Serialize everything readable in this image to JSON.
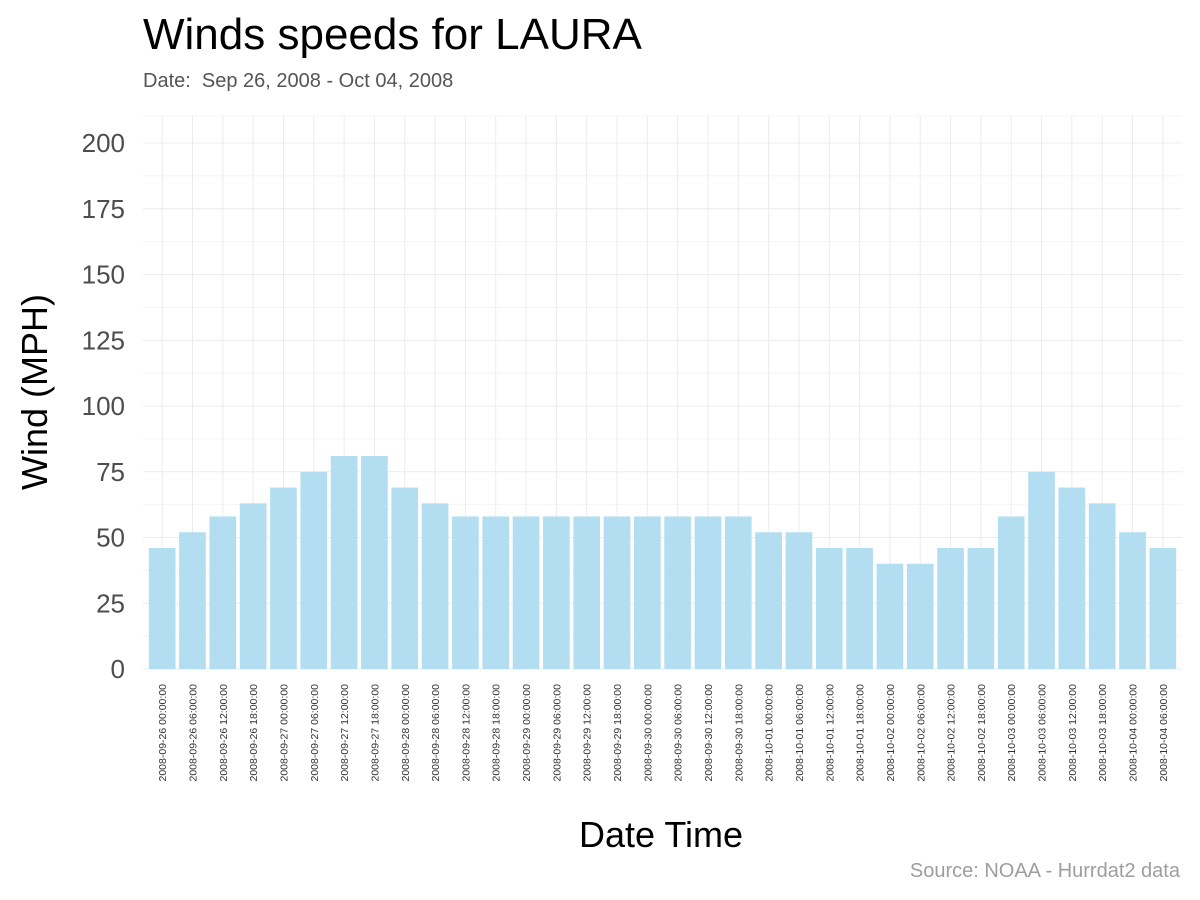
{
  "title": "Winds speeds for LAURA",
  "subtitle": "Date:  Sep 26, 2008 - Oct 04, 2008",
  "caption": "Source: NOAA - Hurrdat2 data",
  "colors": {
    "bar": "#b3def2",
    "grid": "#ececec",
    "background": "#ffffff"
  },
  "chart_data": {
    "type": "bar",
    "title": "Winds speeds for LAURA",
    "subtitle": "Date:  Sep 26, 2008 - Oct 04, 2008",
    "xlabel": "Date Time",
    "ylabel": "Wind (MPH)",
    "ylim": [
      0,
      200
    ],
    "yticks": [
      0,
      25,
      50,
      75,
      100,
      125,
      150,
      175,
      200
    ],
    "grid": true,
    "legend": "none",
    "categories": [
      "2008-09-26 00:00:00",
      "2008-09-26 06:00:00",
      "2008-09-26 12:00:00",
      "2008-09-26 18:00:00",
      "2008-09-27 00:00:00",
      "2008-09-27 06:00:00",
      "2008-09-27 12:00:00",
      "2008-09-27 18:00:00",
      "2008-09-28 00:00:00",
      "2008-09-28 06:00:00",
      "2008-09-28 12:00:00",
      "2008-09-28 18:00:00",
      "2008-09-29 00:00:00",
      "2008-09-29 06:00:00",
      "2008-09-29 12:00:00",
      "2008-09-29 18:00:00",
      "2008-09-30 00:00:00",
      "2008-09-30 06:00:00",
      "2008-09-30 12:00:00",
      "2008-09-30 18:00:00",
      "2008-10-01 00:00:00",
      "2008-10-01 06:00:00",
      "2008-10-01 12:00:00",
      "2008-10-01 18:00:00",
      "2008-10-02 00:00:00",
      "2008-10-02 06:00:00",
      "2008-10-02 12:00:00",
      "2008-10-02 18:00:00",
      "2008-10-03 00:00:00",
      "2008-10-03 06:00:00",
      "2008-10-03 12:00:00",
      "2008-10-03 18:00:00",
      "2008-10-04 00:00:00",
      "2008-10-04 06:00:00"
    ],
    "values": [
      46,
      52,
      58,
      63,
      69,
      75,
      81,
      81,
      69,
      63,
      58,
      58,
      58,
      58,
      58,
      58,
      58,
      58,
      58,
      58,
      52,
      52,
      46,
      46,
      40,
      40,
      46,
      46,
      58,
      75,
      69,
      63,
      52,
      46
    ]
  }
}
